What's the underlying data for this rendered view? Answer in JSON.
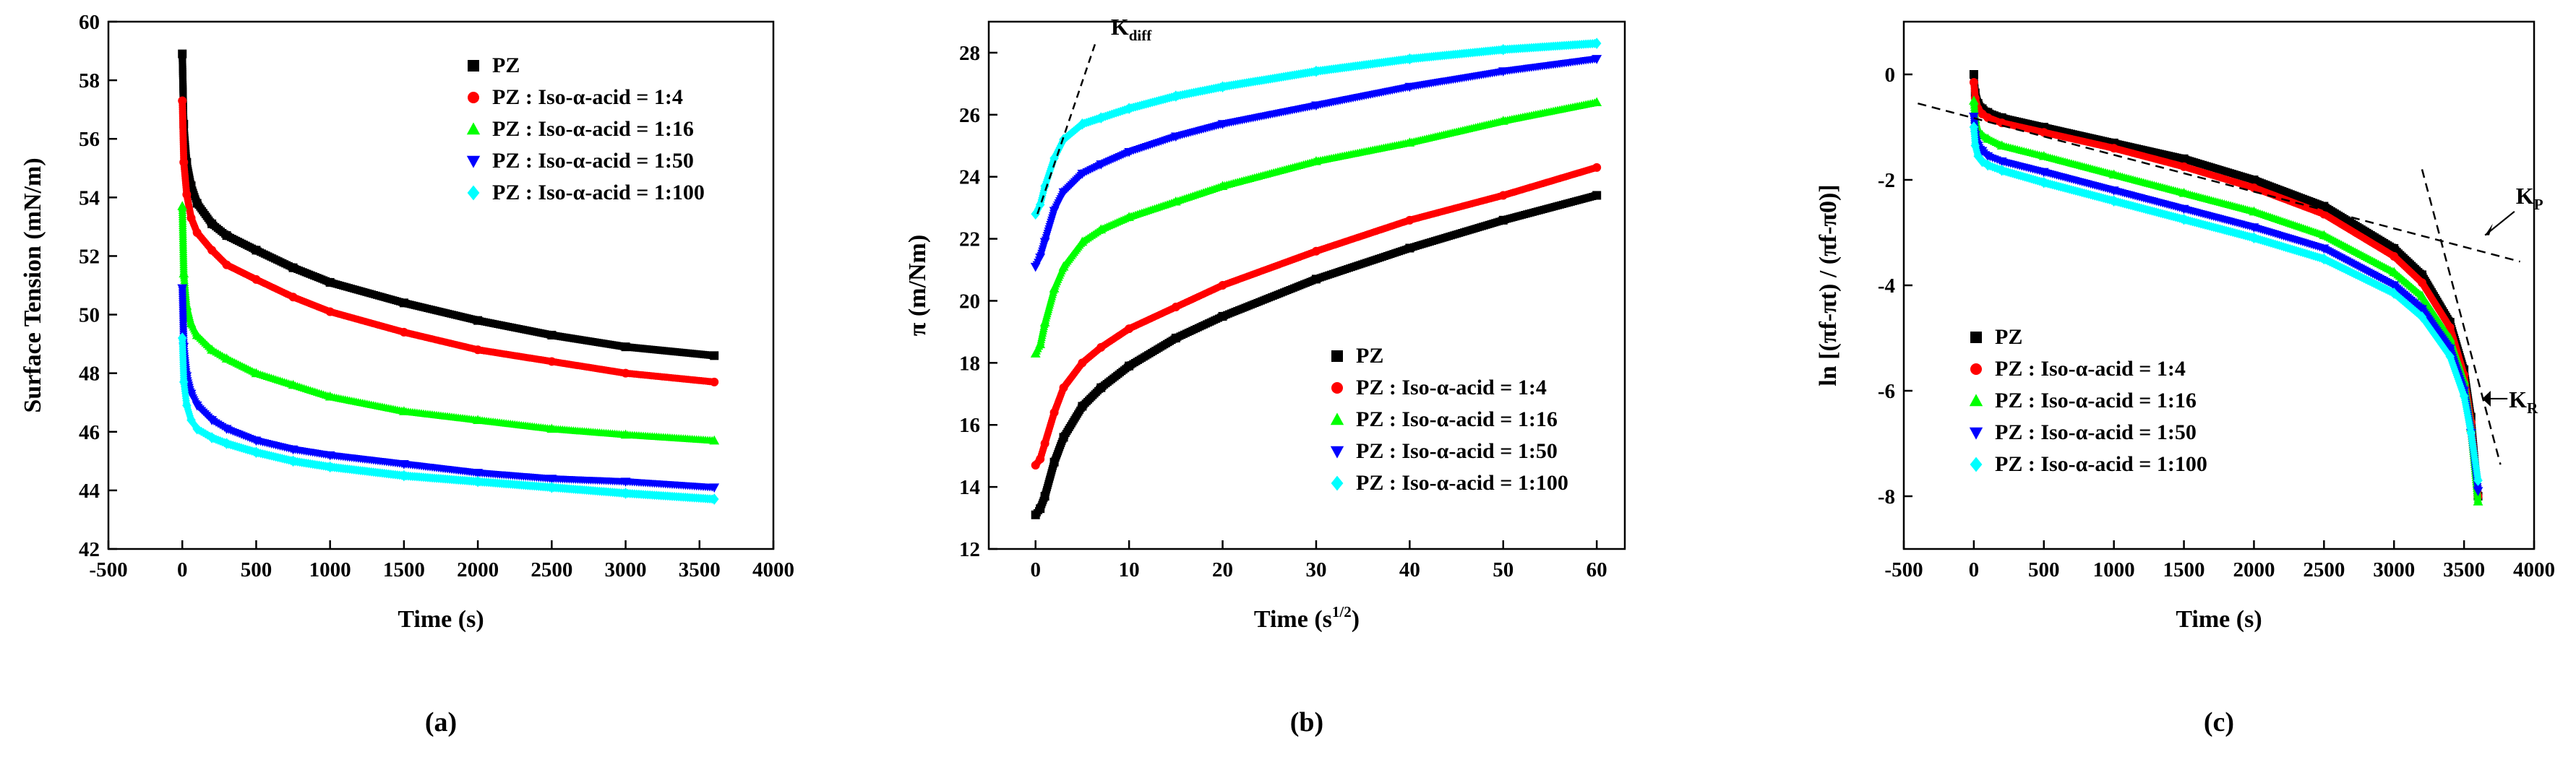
{
  "chart_data": [
    {
      "type": "scatter",
      "panel_label": "(a)",
      "xlabel": "Time (s)",
      "ylabel": "Surface Tension (mN/m)",
      "xlim": [
        -500,
        4000
      ],
      "ylim": [
        42,
        60
      ],
      "xticks": [
        "-500",
        "0",
        "500",
        "1000",
        "1500",
        "2000",
        "2500",
        "3000",
        "3500",
        "4000"
      ],
      "yticks": [
        "42",
        "44",
        "46",
        "48",
        "50",
        "52",
        "54",
        "56",
        "58",
        "60"
      ],
      "legend_position": "top-right",
      "series": [
        {
          "name": "PZ",
          "color": "#000000",
          "marker": "square",
          "x": [
            0,
            10,
            30,
            60,
            100,
            200,
            300,
            500,
            750,
            1000,
            1500,
            2000,
            2500,
            3000,
            3600
          ],
          "y": [
            58.9,
            56.5,
            55.2,
            54.4,
            53.8,
            53.1,
            52.7,
            52.2,
            51.6,
            51.1,
            50.4,
            49.8,
            49.3,
            48.9,
            48.6
          ]
        },
        {
          "name": "PZ : Iso-α-acid = 1:4",
          "color": "#ff0000",
          "marker": "circle",
          "x": [
            0,
            10,
            30,
            60,
            100,
            200,
            300,
            500,
            750,
            1000,
            1500,
            2000,
            2500,
            3000,
            3600
          ],
          "y": [
            57.3,
            55.2,
            54.1,
            53.3,
            52.8,
            52.2,
            51.7,
            51.2,
            50.6,
            50.1,
            49.4,
            48.8,
            48.4,
            48.0,
            47.7
          ]
        },
        {
          "name": "PZ : Iso-α-acid = 1:16",
          "color": "#00ff00",
          "marker": "triangle-up",
          "x": [
            0,
            10,
            30,
            60,
            100,
            200,
            300,
            500,
            750,
            1000,
            1500,
            2000,
            2500,
            3000,
            3600
          ],
          "y": [
            53.7,
            51.4,
            50.3,
            49.7,
            49.3,
            48.8,
            48.5,
            48.0,
            47.6,
            47.2,
            46.7,
            46.4,
            46.1,
            45.9,
            45.7
          ]
        },
        {
          "name": "PZ : Iso-α-acid = 1:50",
          "color": "#0000ff",
          "marker": "triangle-down",
          "x": [
            0,
            10,
            30,
            60,
            100,
            200,
            300,
            500,
            750,
            1000,
            1500,
            2000,
            2500,
            3000,
            3600
          ],
          "y": [
            50.9,
            48.9,
            47.9,
            47.3,
            46.9,
            46.4,
            46.1,
            45.7,
            45.4,
            45.2,
            44.9,
            44.6,
            44.4,
            44.3,
            44.1
          ]
        },
        {
          "name": "PZ : Iso-α-acid = 1:100",
          "color": "#00ffff",
          "marker": "diamond",
          "x": [
            0,
            10,
            30,
            60,
            100,
            200,
            300,
            500,
            750,
            1000,
            1500,
            2000,
            2500,
            3000,
            3600
          ],
          "y": [
            49.2,
            47.7,
            46.9,
            46.4,
            46.1,
            45.8,
            45.6,
            45.3,
            45.0,
            44.8,
            44.5,
            44.3,
            44.1,
            43.9,
            43.7
          ]
        }
      ]
    },
    {
      "type": "scatter",
      "panel_label": "(b)",
      "xlabel": "Time (s",
      "xlabel_sup": "1/2",
      "xlabel_end": ")",
      "ylabel": "π (m/Nm)",
      "xlim": [
        -5,
        63
      ],
      "ylim": [
        12,
        29
      ],
      "xticks": [
        "0",
        "10",
        "20",
        "30",
        "40",
        "50",
        "60"
      ],
      "yticks": [
        "12",
        "14",
        "16",
        "18",
        "20",
        "22",
        "24",
        "26",
        "28"
      ],
      "legend_position": "bottom-right",
      "annotation": {
        "label": "K",
        "sub": "diff"
      },
      "series": [
        {
          "name": "PZ",
          "color": "#000000",
          "marker": "square",
          "x": [
            0,
            0.5,
            1,
            2,
            3,
            5,
            7,
            10,
            15,
            20,
            30,
            40,
            50,
            60
          ],
          "y": [
            13.1,
            13.3,
            13.7,
            14.8,
            15.6,
            16.6,
            17.2,
            17.9,
            18.8,
            19.5,
            20.7,
            21.7,
            22.6,
            23.4
          ]
        },
        {
          "name": "PZ : Iso-α-acid = 1:4",
          "color": "#ff0000",
          "marker": "circle",
          "x": [
            0,
            0.5,
            1,
            2,
            3,
            5,
            7,
            10,
            15,
            20,
            30,
            40,
            50,
            60
          ],
          "y": [
            14.7,
            14.9,
            15.4,
            16.4,
            17.2,
            18.0,
            18.5,
            19.1,
            19.8,
            20.5,
            21.6,
            22.6,
            23.4,
            24.3
          ]
        },
        {
          "name": "PZ : Iso-α-acid = 1:16",
          "color": "#00ff00",
          "marker": "triangle-up",
          "x": [
            0,
            0.5,
            1,
            2,
            3,
            5,
            7,
            10,
            15,
            20,
            30,
            40,
            50,
            60
          ],
          "y": [
            18.3,
            18.6,
            19.3,
            20.4,
            21.1,
            21.9,
            22.3,
            22.7,
            23.2,
            23.7,
            24.5,
            25.1,
            25.8,
            26.4
          ]
        },
        {
          "name": "PZ : Iso-α-acid = 1:50",
          "color": "#0000ff",
          "marker": "triangle-down",
          "x": [
            0,
            0.5,
            1,
            2,
            3,
            5,
            7,
            10,
            15,
            20,
            30,
            40,
            50,
            60
          ],
          "y": [
            21.1,
            21.4,
            21.9,
            22.9,
            23.5,
            24.1,
            24.4,
            24.8,
            25.3,
            25.7,
            26.3,
            26.9,
            27.4,
            27.8
          ]
        },
        {
          "name": "PZ : Iso-α-acid = 1:100",
          "color": "#00ffff",
          "marker": "diamond",
          "x": [
            0,
            0.5,
            1,
            2,
            3,
            5,
            7,
            10,
            15,
            20,
            30,
            40,
            50,
            60
          ],
          "y": [
            22.8,
            23.1,
            23.7,
            24.6,
            25.2,
            25.7,
            25.9,
            26.2,
            26.6,
            26.9,
            27.4,
            27.8,
            28.1,
            28.3
          ]
        }
      ]
    },
    {
      "type": "scatter",
      "panel_label": "(c)",
      "xlabel": "Time (s)",
      "ylabel": "ln [(πf-πt) / (πf-π0)]",
      "xlim": [
        -500,
        4000
      ],
      "ylim": [
        -9,
        1
      ],
      "xticks": [
        "-500",
        "0",
        "500",
        "1000",
        "1500",
        "2000",
        "2500",
        "3000",
        "3500",
        "4000"
      ],
      "yticks": [
        "-8",
        "-6",
        "-4",
        "-2",
        "0"
      ],
      "legend_position": "bottom-left",
      "annotations": [
        {
          "label": "K",
          "sub": "P"
        },
        {
          "label": "K",
          "sub": "R"
        }
      ],
      "series": [
        {
          "name": "PZ",
          "color": "#000000",
          "marker": "square",
          "x": [
            0,
            10,
            30,
            60,
            100,
            200,
            500,
            1000,
            1500,
            2000,
            2500,
            3000,
            3200,
            3400,
            3500,
            3550,
            3600
          ],
          "y": [
            0,
            -0.35,
            -0.55,
            -0.65,
            -0.72,
            -0.82,
            -1.0,
            -1.3,
            -1.6,
            -2.0,
            -2.5,
            -3.3,
            -3.8,
            -4.7,
            -5.6,
            -6.5,
            -8.0
          ]
        },
        {
          "name": "PZ : Iso-α-acid = 1:4",
          "color": "#ff0000",
          "marker": "circle",
          "x": [
            0,
            10,
            30,
            60,
            100,
            200,
            500,
            1000,
            1500,
            2000,
            2500,
            3000,
            3200,
            3400,
            3500,
            3550,
            3600
          ],
          "y": [
            -0.15,
            -0.45,
            -0.65,
            -0.75,
            -0.82,
            -0.92,
            -1.1,
            -1.4,
            -1.75,
            -2.15,
            -2.65,
            -3.45,
            -3.95,
            -4.8,
            -5.7,
            -6.6,
            -8.0
          ]
        },
        {
          "name": "PZ : Iso-α-acid = 1:16",
          "color": "#00ff00",
          "marker": "triangle-up",
          "x": [
            0,
            10,
            30,
            60,
            100,
            200,
            500,
            1000,
            1500,
            2000,
            2500,
            3000,
            3200,
            3400,
            3500,
            3550,
            3600
          ],
          "y": [
            -0.5,
            -0.85,
            -1.05,
            -1.15,
            -1.22,
            -1.35,
            -1.55,
            -1.9,
            -2.25,
            -2.6,
            -3.05,
            -3.75,
            -4.2,
            -5.0,
            -5.8,
            -6.7,
            -8.1
          ]
        },
        {
          "name": "PZ : Iso-α-acid = 1:50",
          "color": "#0000ff",
          "marker": "triangle-down",
          "x": [
            0,
            10,
            30,
            60,
            100,
            200,
            500,
            1000,
            1500,
            2000,
            2500,
            3000,
            3200,
            3400,
            3500,
            3550,
            3600
          ],
          "y": [
            -0.8,
            -1.15,
            -1.35,
            -1.45,
            -1.55,
            -1.65,
            -1.85,
            -2.2,
            -2.55,
            -2.9,
            -3.3,
            -4.0,
            -4.45,
            -5.2,
            -6.0,
            -6.8,
            -7.9
          ]
        },
        {
          "name": "PZ : Iso-α-acid = 1:100",
          "color": "#00ffff",
          "marker": "diamond",
          "x": [
            0,
            10,
            30,
            60,
            100,
            200,
            500,
            1000,
            1500,
            2000,
            2500,
            3000,
            3200,
            3400,
            3500,
            3550,
            3600
          ],
          "y": [
            -1.0,
            -1.35,
            -1.55,
            -1.65,
            -1.72,
            -1.82,
            -2.05,
            -2.4,
            -2.75,
            -3.1,
            -3.5,
            -4.15,
            -4.6,
            -5.35,
            -6.1,
            -6.8,
            -7.7
          ]
        }
      ]
    }
  ]
}
